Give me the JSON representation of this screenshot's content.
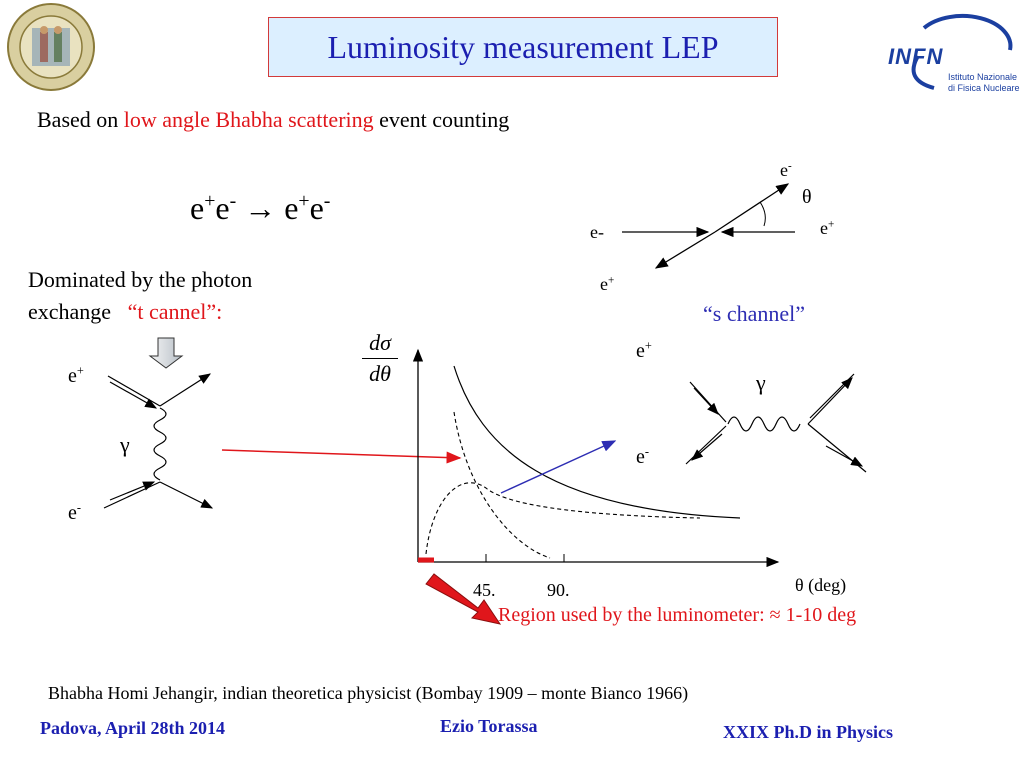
{
  "slide": {
    "title": "Luminosity measurement LEP",
    "intro": {
      "before": "Based on ",
      "highlight": "low angle Bhabha scattering",
      "after": " event counting"
    },
    "reaction": {
      "lhs_a": "e",
      "lhs_a_sup": "+",
      "lhs_b": "e",
      "lhs_b_sup": "-",
      "arrow": "→",
      "rhs_a": "e",
      "rhs_a_sup": "+",
      "rhs_b": "e",
      "rhs_b_sup": "-"
    },
    "t_channel": {
      "line1": "Dominated by the photon",
      "line2_a": "exchange   ",
      "line2_b": "“t cannel”:"
    },
    "s_channel_label": "“s channel”",
    "scatter_labels": {
      "e_minus_top": "e",
      "e_minus_top_sup": "-",
      "theta": "θ",
      "e_minus_left": "e-",
      "e_plus_right": "e",
      "e_plus_right_sup": "+",
      "e_plus_bottom": "e",
      "e_plus_bottom_sup": "+"
    },
    "t_diagram_labels": {
      "e_plus": "e",
      "e_plus_sup": "+",
      "gamma": "γ",
      "e_minus": "e",
      "e_minus_sup": "-"
    },
    "s_diagram_labels": {
      "e_plus": "e",
      "e_plus_sup": "+",
      "gamma": "γ",
      "e_minus": "e",
      "e_minus_sup": "-"
    },
    "plot": {
      "y_num": "dσ",
      "y_den": "dθ",
      "tick_45": "45.",
      "tick_90": "90.",
      "x_label": "θ (deg)",
      "region_note": "Region used by the luminometer: ≈ 1-10 deg"
    },
    "bhabha_note": "Bhabha Homi Jehangir, indian theoretica physicist (Bombay 1909 – monte Bianco 1966)",
    "footer": {
      "left": "Padova, April 28th 2014",
      "center": "Ezio Torassa",
      "right": "XXIX  Ph.D in Physics"
    },
    "logo_infn": {
      "mark": "INFN",
      "line1": "Istituto Nazionale",
      "line2": "di Fisica Nucleare"
    },
    "seal_text": "UNIVERSITAS STUDII PATAVINI",
    "colors": {
      "title_blue": "#1b1fb0",
      "title_bg": "#dcefff",
      "red": "#e0161b",
      "s_blue": "#2d2db3"
    }
  }
}
